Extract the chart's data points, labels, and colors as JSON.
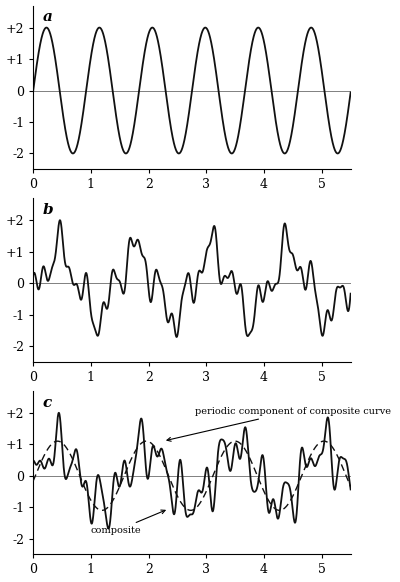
{
  "title_a": "a",
  "title_b": "b",
  "title_c": "c",
  "xlim": [
    0,
    5.5
  ],
  "ylim": [
    -2.5,
    2.7
  ],
  "xticks": [
    0,
    1,
    2,
    3,
    4,
    5
  ],
  "yticks_pos": [
    "+2",
    "+1",
    "0",
    "-1",
    "-2"
  ],
  "yticks_val": [
    2,
    1,
    0,
    -1,
    -2
  ],
  "label_periodic": "periodic component of composite curve",
  "label_composite": "composite",
  "line_color": "#111111",
  "periodic_freq_a": 1.09,
  "periodic_amp_a": 2.0,
  "n_points": 3000
}
